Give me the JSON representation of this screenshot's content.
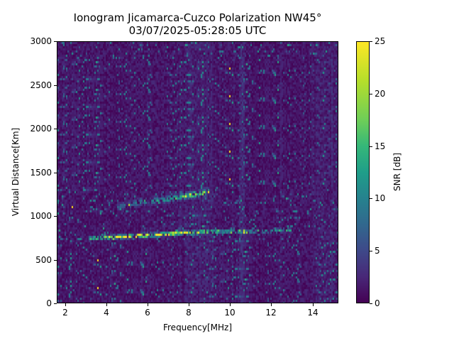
{
  "chart_data": {
    "type": "heatmap",
    "title": "Ionogram Jicamarca-Cuzco Polarization NW45°",
    "subtitle": "03/07/2025-05:28:05 UTC",
    "xlabel": "Frequency[MHz]",
    "ylabel": "Virtual Distance[Km]",
    "xlim": [
      1.6,
      15.25
    ],
    "ylim": [
      0,
      3000
    ],
    "xticks": [
      2,
      4,
      6,
      8,
      10,
      12,
      14
    ],
    "yticks": [
      0,
      500,
      1000,
      1500,
      2000,
      2500,
      3000
    ],
    "colorbar": {
      "label": "SNR [dB]",
      "range": [
        0,
        25
      ],
      "ticks": [
        0,
        5,
        10,
        15,
        20,
        25
      ],
      "colormap": "viridis"
    },
    "grid": false,
    "traces": [
      {
        "name": "lower echo trace (1-hop)",
        "points": [
          {
            "freq_mhz": 3.1,
            "distance_km": 740
          },
          {
            "freq_mhz": 4.0,
            "distance_km": 750
          },
          {
            "freq_mhz": 5.0,
            "distance_km": 760
          },
          {
            "freq_mhz": 6.0,
            "distance_km": 775
          },
          {
            "freq_mhz": 7.0,
            "distance_km": 790
          },
          {
            "freq_mhz": 8.0,
            "distance_km": 805
          },
          {
            "freq_mhz": 9.0,
            "distance_km": 815
          },
          {
            "freq_mhz": 10.0,
            "distance_km": 820
          },
          {
            "freq_mhz": 11.0,
            "distance_km": 815
          },
          {
            "freq_mhz": 12.0,
            "distance_km": 820
          },
          {
            "freq_mhz": 12.6,
            "distance_km": 840
          },
          {
            "freq_mhz": 13.0,
            "distance_km": 830
          }
        ],
        "peak_snr_db": 25
      },
      {
        "name": "upper echo trace (2-hop)",
        "points": [
          {
            "freq_mhz": 4.5,
            "distance_km": 1100
          },
          {
            "freq_mhz": 5.5,
            "distance_km": 1150
          },
          {
            "freq_mhz": 6.5,
            "distance_km": 1180
          },
          {
            "freq_mhz": 7.5,
            "distance_km": 1210
          },
          {
            "freq_mhz": 8.5,
            "distance_km": 1250
          },
          {
            "freq_mhz": 9.0,
            "distance_km": 1280
          }
        ],
        "peak_snr_db": 22
      }
    ],
    "background_snr_db": [
      0,
      5
    ]
  },
  "colors": {
    "colormap_stops": [
      "#440154",
      "#482878",
      "#3e4989",
      "#31688e",
      "#26828e",
      "#1f9e89",
      "#35b779",
      "#6ece58",
      "#b5de2b",
      "#fde725"
    ]
  }
}
